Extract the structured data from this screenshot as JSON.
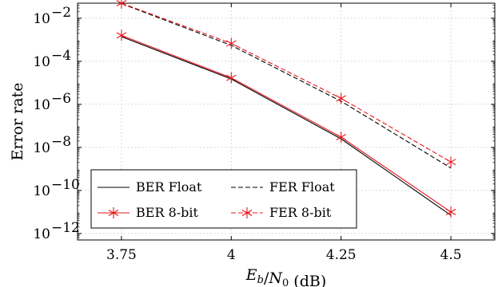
{
  "chart_data": {
    "type": "line",
    "xlabel_parts": {
      "e": "E",
      "b": "b",
      "slash": "/",
      "n": "N",
      "zero": "0",
      "unit": " (dB)"
    },
    "ylabel": "Error rate",
    "x": [
      3.75,
      4,
      4.25,
      4.5
    ],
    "x_tick_labels": [
      "3.75",
      "4",
      "4.25",
      "4.5"
    ],
    "xlim": [
      3.65,
      4.6
    ],
    "ylim_log10": [
      -12.3,
      -1.3
    ],
    "y_scale": "log",
    "y_ticks_log10": [
      -12,
      -10,
      -8,
      -6,
      -4,
      -2
    ],
    "y_tick_base": "10",
    "y_tick_exponents": [
      "−12",
      "−10",
      "−8",
      "−6",
      "−4",
      "−2"
    ],
    "grid": "dotted",
    "legend_position": "lower-left",
    "series": [
      {
        "name": "BER Float",
        "color": "#000000",
        "dashed": false,
        "marker": false,
        "values": [
          0.0014,
          1.5e-05,
          2.5e-08,
          7e-12
        ]
      },
      {
        "name": "FER Float",
        "color": "#000000",
        "dashed": true,
        "marker": false,
        "values": [
          0.048,
          0.00055,
          1.4e-06,
          1.1e-09
        ]
      },
      {
        "name": "BER 8-bit",
        "color": "#e8141a",
        "dashed": false,
        "marker": true,
        "values": [
          0.0016,
          1.7e-05,
          3e-08,
          1e-11
        ]
      },
      {
        "name": "FER 8-bit",
        "color": "#e8141a",
        "dashed": true,
        "marker": true,
        "values": [
          0.05,
          0.00068,
          1.9e-06,
          2.1e-09
        ]
      }
    ]
  }
}
